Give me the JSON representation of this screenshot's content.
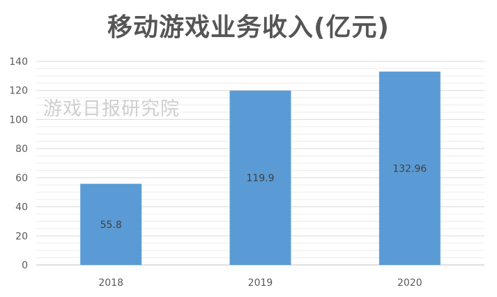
{
  "watermark": "游戏日报研究院",
  "chart_data": {
    "type": "bar",
    "title": "移动游戏业务收入(亿元)",
    "xlabel": "",
    "ylabel": "",
    "categories": [
      "2018",
      "2019",
      "2020"
    ],
    "values": [
      55.8,
      119.9,
      132.96
    ],
    "data_labels": [
      "55.8",
      "119.9",
      "132.96"
    ],
    "ylim": [
      0,
      140
    ],
    "y_ticks": [
      0,
      20,
      40,
      60,
      80,
      100,
      120,
      140
    ],
    "grid": true,
    "legend": "none",
    "bar_color": "#5b9bd5",
    "grid_color": "#d9d9d9"
  }
}
